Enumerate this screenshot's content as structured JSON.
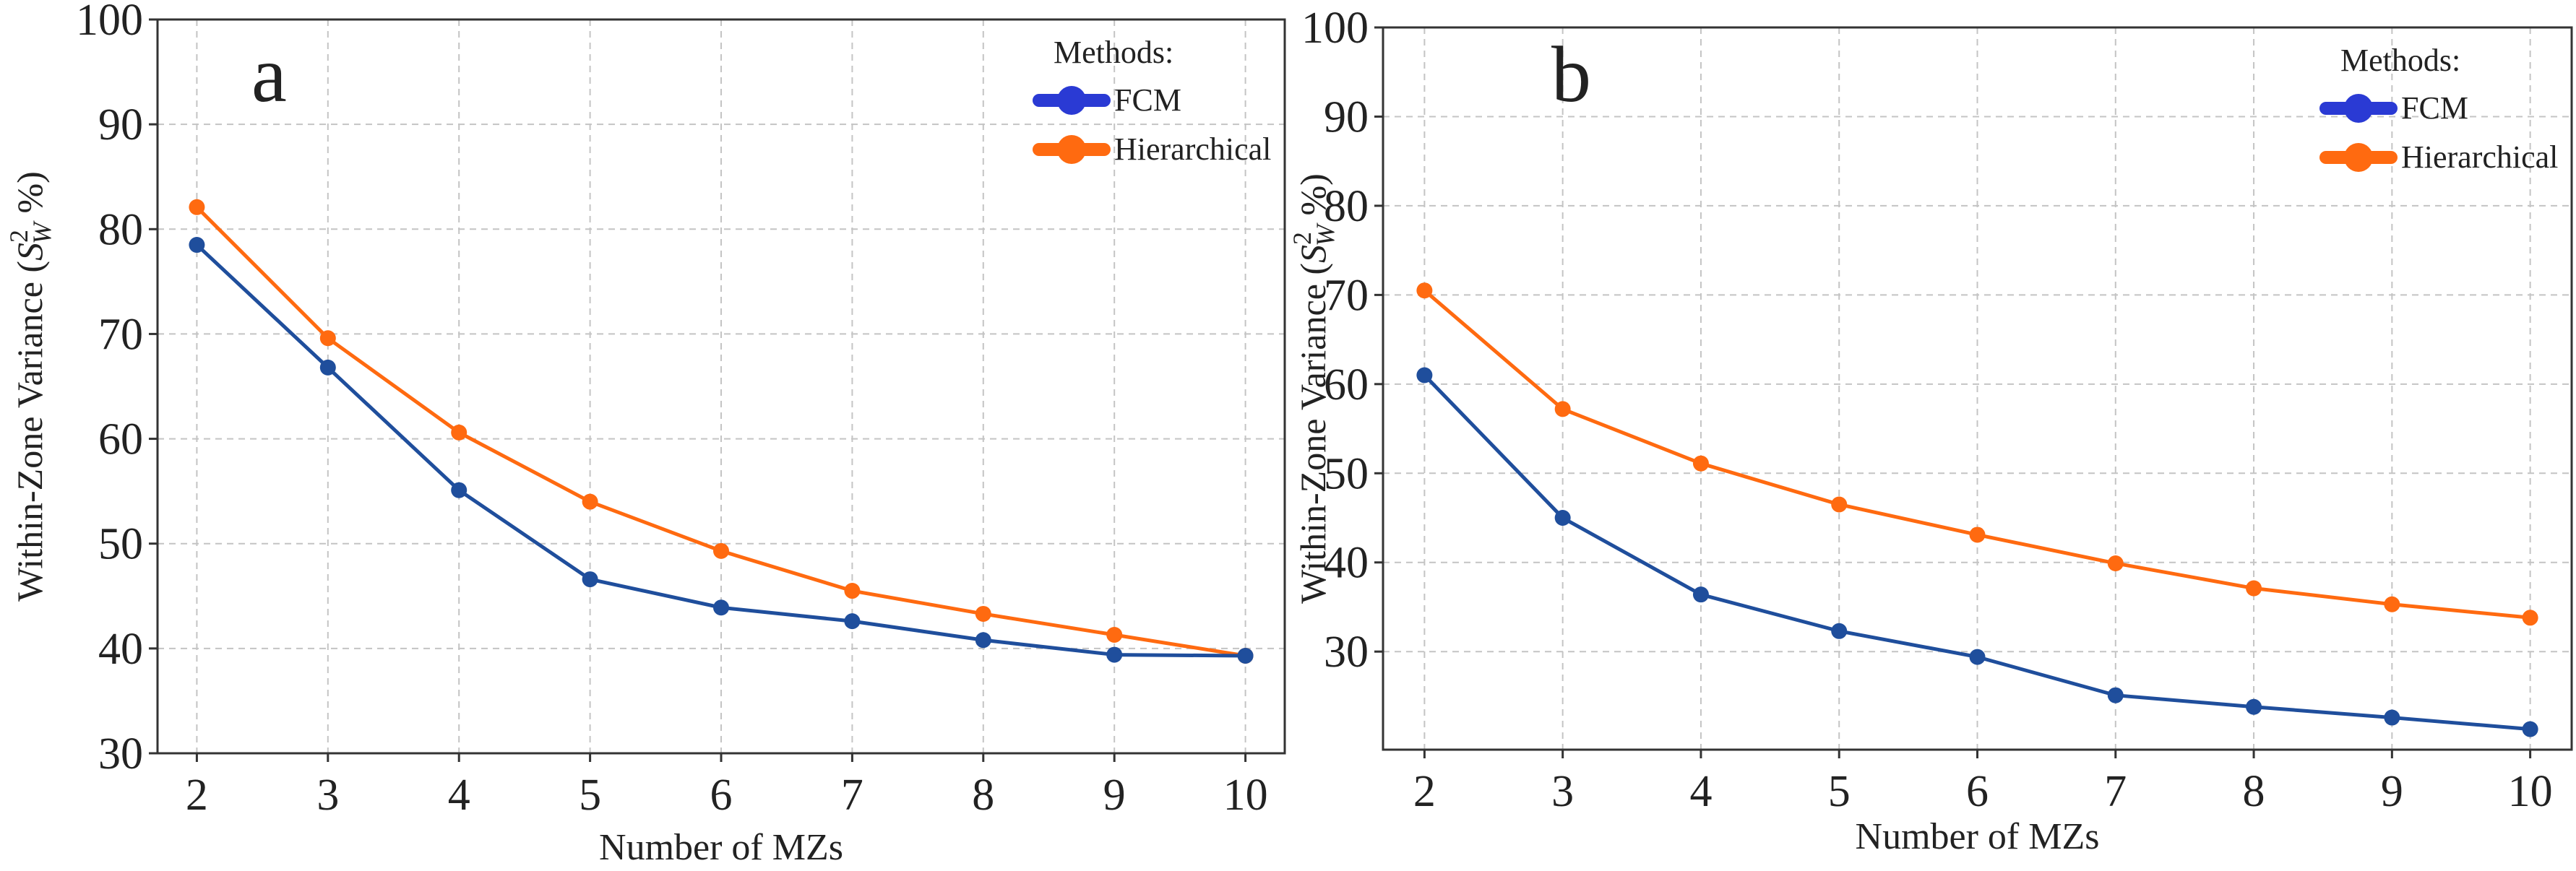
{
  "chart_data": [
    {
      "type": "line",
      "panel_label": "a",
      "xlabel": "Number of MZs",
      "ylabel": "Within-Zone Variance (S²_W %)",
      "ylabel_prefix": "Within-Zone Variance (",
      "ylabel_symbol": "S",
      "ylabel_sup": "2",
      "ylabel_sub": "W",
      "ylabel_suffix": " %)",
      "x": [
        2,
        3,
        4,
        5,
        6,
        7,
        8,
        9,
        10
      ],
      "xlim": [
        1.7,
        10.3
      ],
      "ylim": [
        30,
        100
      ],
      "yticks": [
        30,
        40,
        50,
        60,
        70,
        80,
        90,
        100
      ],
      "grid": true,
      "legend_title": "Methods:",
      "legend_position": "top-right",
      "series": [
        {
          "name": "FCM",
          "color": "#1f4e9c",
          "legend_color": "#2a3ad4",
          "values": [
            78.5,
            66.8,
            55.1,
            46.6,
            43.9,
            42.6,
            40.8,
            39.4,
            39.3
          ]
        },
        {
          "name": "Hierarchical",
          "color": "#ff6a10",
          "legend_color": "#ff6a10",
          "values": [
            82.1,
            69.6,
            60.6,
            54.0,
            49.3,
            45.5,
            43.3,
            41.3,
            39.3
          ]
        }
      ]
    },
    {
      "type": "line",
      "panel_label": "b",
      "xlabel": "Number of MZs",
      "ylabel": "Within-Zone Variance (S²_W %)",
      "ylabel_prefix": "Within-Zone Variance (",
      "ylabel_symbol": "S",
      "ylabel_sup": "2",
      "ylabel_sub": "W",
      "ylabel_suffix": " %)",
      "x": [
        2,
        3,
        4,
        5,
        6,
        7,
        8,
        9,
        10
      ],
      "xlim": [
        1.7,
        10.3
      ],
      "ylim": [
        19,
        100
      ],
      "yticks": [
        30,
        40,
        50,
        60,
        70,
        80,
        90,
        100
      ],
      "grid": true,
      "legend_title": "Methods:",
      "legend_position": "top-right",
      "series": [
        {
          "name": "FCM",
          "color": "#1f4e9c",
          "legend_color": "#2a3ad4",
          "values": [
            61.0,
            45.0,
            36.4,
            32.3,
            29.4,
            25.1,
            23.8,
            22.6,
            21.3
          ]
        },
        {
          "name": "Hierarchical",
          "color": "#ff6a10",
          "legend_color": "#ff6a10",
          "values": [
            70.5,
            57.2,
            51.1,
            46.5,
            43.1,
            39.9,
            37.1,
            35.3,
            33.8
          ]
        }
      ]
    }
  ]
}
